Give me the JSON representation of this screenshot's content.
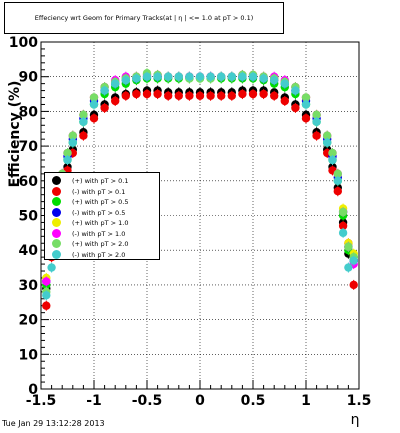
{
  "title": "Effeciency wrt Geom for Primary Tracks(at | η | <= 1.0 at pT > 0.1)",
  "footer_timestamp": "Tue Jan 29 13:12:28 2013",
  "chart_data": {
    "type": "scatter",
    "xlabel": "η",
    "ylabel": "Efficiency (%)",
    "xlim": [
      -1.5,
      1.5
    ],
    "ylim": [
      0,
      100
    ],
    "x_ticks": [
      "-1.5",
      "-1",
      "-0.5",
      "0",
      "0.5",
      "1",
      "1.5"
    ],
    "y_ticks": [
      "0",
      "10",
      "20",
      "30",
      "40",
      "50",
      "60",
      "70",
      "80",
      "90",
      "100"
    ],
    "grid": true,
    "legend_placement": "middle-left",
    "series": [
      {
        "name": "(+) with pT > 0.1",
        "color": "#000000",
        "x": [
          -1.45,
          -1.4,
          -1.35,
          -1.3,
          -1.25,
          -1.2,
          -1.1,
          -1.0,
          -0.9,
          -0.8,
          -0.7,
          -0.6,
          -0.5,
          -0.4,
          -0.3,
          -0.2,
          -0.1,
          0.0,
          0.1,
          0.2,
          0.3,
          0.4,
          0.5,
          0.6,
          0.7,
          0.8,
          0.9,
          1.0,
          1.1,
          1.2,
          1.25,
          1.3,
          1.35,
          1.4,
          1.45
        ],
        "values": [
          29,
          39,
          48,
          58,
          64,
          69,
          74,
          79,
          82,
          84,
          85,
          85.5,
          86,
          86,
          85.5,
          85.5,
          85.5,
          85.5,
          85.5,
          85.5,
          85.5,
          86,
          86,
          86,
          85.5,
          84,
          82,
          79,
          74,
          69,
          64,
          58,
          48,
          39,
          37
        ]
      },
      {
        "name": "(-) with pT > 0.1",
        "color": "#ee0000",
        "x": [
          -1.45,
          -1.4,
          -1.35,
          -1.3,
          -1.25,
          -1.2,
          -1.1,
          -1.0,
          -0.9,
          -0.8,
          -0.7,
          -0.6,
          -0.5,
          -0.4,
          -0.3,
          -0.2,
          -0.1,
          0.0,
          0.1,
          0.2,
          0.3,
          0.4,
          0.5,
          0.6,
          0.7,
          0.8,
          0.9,
          1.0,
          1.1,
          1.2,
          1.25,
          1.3,
          1.35,
          1.4,
          1.45
        ],
        "values": [
          24,
          38,
          47,
          57,
          63,
          68,
          73,
          78,
          81,
          83,
          84.5,
          85,
          85,
          85,
          84.5,
          84.5,
          84.5,
          84.5,
          84.5,
          84.5,
          84.5,
          85,
          85,
          85,
          84.5,
          83,
          81,
          78,
          73,
          68,
          63,
          57,
          47,
          42,
          30
        ]
      },
      {
        "name": "(+) with pT > 0.5",
        "color": "#00dd00",
        "x": [
          -1.45,
          -1.4,
          -1.35,
          -1.3,
          -1.25,
          -1.2,
          -1.1,
          -1.0,
          -0.9,
          -0.8,
          -0.7,
          -0.6,
          -0.5,
          -0.4,
          -0.3,
          -0.2,
          -0.1,
          0.0,
          0.1,
          0.2,
          0.3,
          0.4,
          0.5,
          0.6,
          0.7,
          0.8,
          0.9,
          1.0,
          1.1,
          1.2,
          1.25,
          1.3,
          1.35,
          1.4,
          1.45
        ],
        "values": [
          30,
          40,
          50,
          60,
          66,
          71,
          77,
          82,
          85,
          87,
          88,
          89,
          89.5,
          89.5,
          89.5,
          89.5,
          89.5,
          89.5,
          89.5,
          89.5,
          89.5,
          89.5,
          89.5,
          89,
          88,
          87,
          85,
          82,
          77,
          71,
          66,
          60,
          50,
          40,
          38
        ]
      },
      {
        "name": "(-) with pT > 0.5",
        "color": "#0000ee",
        "x": [
          -1.45,
          -1.4,
          -1.35,
          -1.3,
          -1.25,
          -1.2,
          -1.1,
          -1.0,
          -0.9,
          -0.8,
          -0.7,
          -0.6,
          -0.5,
          -0.4,
          -0.3,
          -0.2,
          -0.1,
          0.0,
          0.1,
          0.2,
          0.3,
          0.4,
          0.5,
          0.6,
          0.7,
          0.8,
          0.9,
          1.0,
          1.1,
          1.2,
          1.25,
          1.3,
          1.35,
          1.4,
          1.45
        ],
        "values": [
          31,
          41,
          51,
          61,
          67,
          72,
          78,
          83,
          86,
          88,
          89,
          89.5,
          90,
          90,
          90,
          90,
          90,
          90,
          90,
          90,
          90,
          90,
          90,
          89.5,
          89,
          88,
          86,
          83,
          78,
          72,
          67,
          61,
          51,
          41,
          37
        ]
      },
      {
        "name": "(+) with pT > 1.0",
        "color": "#eeee00",
        "x": [
          -1.45,
          -1.4,
          -1.35,
          -1.3,
          -1.25,
          -1.2,
          -1.1,
          -1.0,
          -0.9,
          -0.8,
          -0.7,
          -0.6,
          -0.5,
          -0.4,
          -0.3,
          -0.2,
          -0.1,
          0.0,
          0.1,
          0.2,
          0.3,
          0.4,
          0.5,
          0.6,
          0.7,
          0.8,
          0.9,
          1.0,
          1.1,
          1.2,
          1.25,
          1.3,
          1.35,
          1.4,
          1.45
        ],
        "values": [
          32,
          42,
          52,
          62,
          68,
          73,
          79,
          84,
          87,
          88.5,
          89.5,
          90,
          90.5,
          90.5,
          90,
          90,
          90,
          90,
          90,
          90,
          90,
          90.5,
          90.5,
          90,
          89.5,
          88.5,
          87,
          84,
          79,
          73,
          68,
          62,
          52,
          42,
          39
        ]
      },
      {
        "name": "(-) with pT > 1.0",
        "color": "#ff00ff",
        "x": [
          -1.45,
          -1.4,
          -1.35,
          -1.3,
          -1.25,
          -1.2,
          -1.1,
          -1.0,
          -0.9,
          -0.8,
          -0.7,
          -0.6,
          -0.5,
          -0.4,
          -0.3,
          -0.2,
          -0.1,
          0.0,
          0.1,
          0.2,
          0.3,
          0.4,
          0.5,
          0.6,
          0.7,
          0.8,
          0.9,
          1.0,
          1.1,
          1.2,
          1.25,
          1.3,
          1.35,
          1.4,
          1.45
        ],
        "values": [
          31,
          41,
          51,
          62,
          68,
          73,
          79,
          84,
          87,
          89,
          90,
          90,
          90.5,
          90.5,
          90,
          90,
          90,
          90,
          90,
          90,
          90,
          90.5,
          90.5,
          90,
          90,
          89,
          87,
          84,
          79,
          73,
          68,
          62,
          51,
          41,
          36
        ]
      },
      {
        "name": "(+) with pT > 2.0",
        "color": "#77dd66",
        "x": [
          -1.45,
          -1.4,
          -1.35,
          -1.3,
          -1.25,
          -1.2,
          -1.1,
          -1.0,
          -0.9,
          -0.8,
          -0.7,
          -0.6,
          -0.5,
          -0.4,
          -0.3,
          -0.2,
          -0.1,
          0.0,
          0.1,
          0.2,
          0.3,
          0.4,
          0.5,
          0.6,
          0.7,
          0.8,
          0.9,
          1.0,
          1.1,
          1.2,
          1.25,
          1.3,
          1.35,
          1.4,
          1.45
        ],
        "values": [
          28,
          41,
          51,
          62,
          68,
          73,
          79,
          84,
          87,
          88.5,
          89.5,
          90,
          91,
          90.5,
          90,
          90,
          89.5,
          89.5,
          89.5,
          90,
          90,
          90.5,
          90.5,
          90,
          89.5,
          88.5,
          87,
          84,
          79,
          73,
          68,
          62,
          51,
          41,
          38
        ]
      },
      {
        "name": "(-) with pT > 2.0",
        "color": "#44cccc",
        "x": [
          -1.45,
          -1.4,
          -1.35,
          -1.3,
          -1.25,
          -1.2,
          -1.1,
          -1.0,
          -0.9,
          -0.8,
          -0.7,
          -0.6,
          -0.5,
          -0.4,
          -0.3,
          -0.2,
          -0.1,
          0.0,
          0.1,
          0.2,
          0.3,
          0.4,
          0.5,
          0.6,
          0.7,
          0.8,
          0.9,
          1.0,
          1.1,
          1.2,
          1.25,
          1.3,
          1.35,
          1.4,
          1.45
        ],
        "values": [
          27,
          35,
          45,
          60,
          66,
          71,
          77,
          82,
          86,
          88,
          89,
          89.5,
          90,
          90,
          90,
          90,
          90,
          90,
          90,
          90,
          90,
          90,
          90,
          89.5,
          89,
          88,
          86,
          82,
          77,
          71,
          66,
          60,
          45,
          35,
          37
        ]
      }
    ]
  }
}
